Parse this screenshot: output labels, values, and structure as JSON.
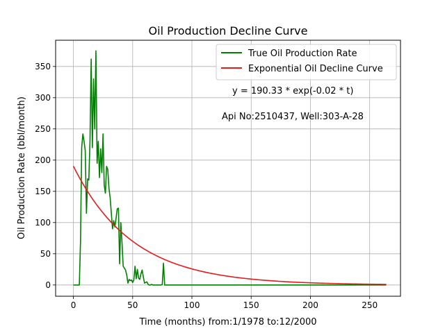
{
  "chart_data": {
    "type": "line",
    "title": "Oil Production Decline Curve",
    "xlabel": "Time (months) from:1/1978 to:12/2000",
    "ylabel": "Oil Production Rate (bbl/month)",
    "xlim": [
      -15,
      276
    ],
    "ylim": [
      -18,
      392
    ],
    "xticks": [
      0,
      50,
      100,
      150,
      200,
      250
    ],
    "yticks": [
      0,
      50,
      100,
      150,
      200,
      250,
      300,
      350
    ],
    "grid": true,
    "legend_position": "upper right",
    "annotations": [
      "y = 190.33 * exp(-0.02 * t)",
      "Api No:2510437, Well:303-A-28"
    ],
    "series": [
      {
        "name": "True Oil Production Rate",
        "color": "#008000",
        "points": [
          [
            0,
            0
          ],
          [
            1,
            0
          ],
          [
            2,
            0
          ],
          [
            3,
            0
          ],
          [
            4,
            0
          ],
          [
            5,
            0
          ],
          [
            6,
            70
          ],
          [
            7,
            220
          ],
          [
            8,
            242
          ],
          [
            9,
            230
          ],
          [
            10,
            215
          ],
          [
            11,
            115
          ],
          [
            12,
            170
          ],
          [
            13,
            168
          ],
          [
            14,
            230
          ],
          [
            15,
            362
          ],
          [
            16,
            220
          ],
          [
            17,
            330
          ],
          [
            18,
            250
          ],
          [
            19,
            375
          ],
          [
            20,
            195
          ],
          [
            21,
            230
          ],
          [
            22,
            172
          ],
          [
            23,
            218
          ],
          [
            24,
            180
          ],
          [
            25,
            242
          ],
          [
            26,
            160
          ],
          [
            27,
            147
          ],
          [
            28,
            190
          ],
          [
            29,
            185
          ],
          [
            30,
            155
          ],
          [
            31,
            140
          ],
          [
            32,
            115
          ],
          [
            33,
            90
          ],
          [
            34,
            103
          ],
          [
            35,
            93
          ],
          [
            36,
            107
          ],
          [
            37,
            122
          ],
          [
            38,
            123
          ],
          [
            39,
            34
          ],
          [
            40,
            100
          ],
          [
            41,
            68
          ],
          [
            42,
            30
          ],
          [
            43,
            27
          ],
          [
            44,
            24
          ],
          [
            45,
            16
          ],
          [
            46,
            3
          ],
          [
            47,
            9
          ],
          [
            48,
            7
          ],
          [
            49,
            8
          ],
          [
            50,
            4
          ],
          [
            51,
            8
          ],
          [
            52,
            30
          ],
          [
            53,
            10
          ],
          [
            54,
            25
          ],
          [
            55,
            11
          ],
          [
            56,
            9
          ],
          [
            57,
            18
          ],
          [
            58,
            24
          ],
          [
            59,
            13
          ],
          [
            60,
            3
          ],
          [
            61,
            4
          ],
          [
            62,
            5
          ],
          [
            63,
            1
          ],
          [
            64,
            0
          ],
          [
            65,
            0
          ],
          [
            66,
            1
          ],
          [
            67,
            0
          ],
          [
            68,
            0
          ],
          [
            69,
            0
          ],
          [
            70,
            0
          ],
          [
            71,
            0
          ],
          [
            72,
            0
          ],
          [
            73,
            0
          ],
          [
            74,
            0
          ],
          [
            75,
            1
          ],
          [
            76,
            35
          ],
          [
            77,
            0
          ],
          [
            100,
            0
          ],
          [
            150,
            0
          ],
          [
            200,
            0
          ],
          [
            250,
            0
          ],
          [
            264,
            0
          ]
        ]
      },
      {
        "name": "Exponential Oil Decline Curve",
        "color": "#e41a1c",
        "a": 190.33,
        "b": 0.02,
        "t_max": 264
      }
    ]
  }
}
